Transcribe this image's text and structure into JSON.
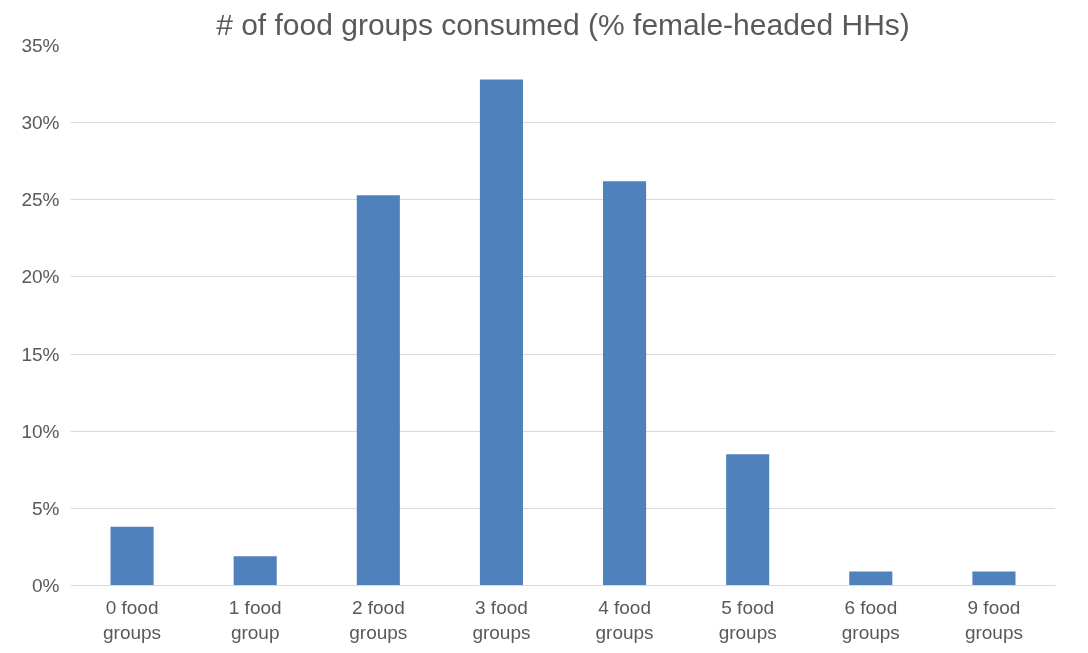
{
  "chart_data": {
    "type": "bar",
    "title": "# of food groups consumed (% female-headed HHs)",
    "categories": [
      "0 food groups",
      "1 food group",
      "2 food groups",
      "3 food groups",
      "4 food groups",
      "5 food groups",
      "6 food groups",
      "9 food groups"
    ],
    "values": [
      3.8,
      1.9,
      25.3,
      32.8,
      26.2,
      8.5,
      0.9,
      0.9
    ],
    "color": "#4f81bd",
    "ylim": [
      0,
      35
    ],
    "yticks": [
      {
        "value": 0,
        "label": "0%"
      },
      {
        "value": 5,
        "label": "5%"
      },
      {
        "value": 10,
        "label": "10%"
      },
      {
        "value": 15,
        "label": "15%"
      },
      {
        "value": 20,
        "label": "20%"
      },
      {
        "value": 25,
        "label": "25%"
      },
      {
        "value": 30,
        "label": "30%"
      },
      {
        "value": 35,
        "label": "35%"
      }
    ],
    "grid": "y"
  }
}
